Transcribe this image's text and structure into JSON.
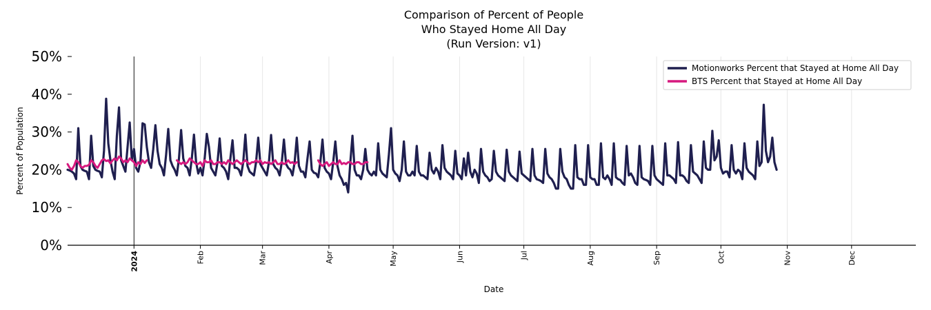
{
  "chart_data": {
    "type": "line",
    "title": [
      "Comparison of Percent of People",
      "Who Stayed Home All Day",
      "(Run Version: v1)"
    ],
    "xlabel": "Date",
    "ylabel": "Percent of Population",
    "ylim": [
      0,
      50
    ],
    "yticks": [
      0,
      10,
      20,
      30,
      40,
      50
    ],
    "ytick_labels": [
      "0%",
      "10%",
      "20%",
      "30%",
      "40%",
      "50%"
    ],
    "x_start": "2023-12-01",
    "x_end": "2024-12-31",
    "xticks": [
      {
        "date": "2024-01-01",
        "label": "2024",
        "bold": true
      },
      {
        "date": "2024-02-01",
        "label": "Feb",
        "bold": false
      },
      {
        "date": "2024-03-01",
        "label": "Mar",
        "bold": false
      },
      {
        "date": "2024-04-01",
        "label": "Apr",
        "bold": false
      },
      {
        "date": "2024-05-01",
        "label": "May",
        "bold": false
      },
      {
        "date": "2024-06-01",
        "label": "Jun",
        "bold": false
      },
      {
        "date": "2024-07-01",
        "label": "Jul",
        "bold": false
      },
      {
        "date": "2024-08-01",
        "label": "Aug",
        "bold": false
      },
      {
        "date": "2024-09-01",
        "label": "Sep",
        "bold": false
      },
      {
        "date": "2024-10-01",
        "label": "Oct",
        "bold": false
      },
      {
        "date": "2024-11-01",
        "label": "Nov",
        "bold": false
      },
      {
        "date": "2024-12-01",
        "label": "Dec",
        "bold": false
      }
    ],
    "vline_date": "2024-01-01",
    "legend_position": "top-right",
    "series": [
      {
        "name": "Motionworks Percent that Stayed at Home All Day",
        "color": "#1f1f4f",
        "start_date": "2023-12-01",
        "values": [
          20,
          19.8,
          19.5,
          19,
          17.5,
          31,
          21,
          20,
          19.7,
          19.5,
          17.5,
          29,
          21,
          20,
          19.7,
          19.5,
          18,
          25,
          38.8,
          27,
          22.5,
          19.5,
          17.5,
          29,
          36.5,
          22.5,
          21,
          19.5,
          26,
          32.5,
          22.5,
          25.5,
          20.5,
          19.5,
          22,
          32.3,
          32,
          26,
          22,
          20.5,
          25.5,
          31.8,
          25,
          21.5,
          20.5,
          18.5,
          24,
          30.8,
          22.5,
          21,
          20,
          18.5,
          23,
          30.5,
          23,
          21,
          20.5,
          18.5,
          23,
          29.3,
          22,
          19,
          20.5,
          18.5,
          23,
          29.5,
          26,
          20.5,
          19.5,
          18.5,
          22,
          28.3,
          21,
          20.5,
          19.5,
          17.5,
          23,
          27.8,
          20.5,
          20.5,
          20,
          18.5,
          22,
          29.3,
          21,
          19.5,
          19,
          18.5,
          22,
          28.5,
          21.5,
          20.5,
          19.5,
          18.5,
          22,
          29.2,
          21.5,
          20.5,
          20,
          18.5,
          22,
          28,
          21.5,
          20.5,
          20,
          18.5,
          22,
          28.5,
          21,
          19.5,
          19.5,
          18,
          23,
          27.5,
          20,
          19.2,
          19,
          18,
          22,
          28,
          20.5,
          19.5,
          19,
          17.5,
          22,
          27.5,
          21,
          18.5,
          17.5,
          16,
          16.5,
          14,
          22,
          29,
          20,
          18.5,
          18.5,
          17.5,
          20,
          25.5,
          20,
          19,
          18.5,
          19.5,
          18.5,
          27,
          20,
          19,
          18.5,
          18,
          24,
          31,
          20,
          19,
          18.5,
          17,
          20,
          27.5,
          19.5,
          18.5,
          18.5,
          19.5,
          18.5,
          26.3,
          19.5,
          18.5,
          18.5,
          18,
          17.5,
          24.5,
          20,
          19,
          20.5,
          19.5,
          17.5,
          26.5,
          20.5,
          19.5,
          19,
          18.5,
          17.5,
          25,
          19,
          18.5,
          17.5,
          23,
          18.5,
          24.5,
          19.5,
          18,
          20,
          19,
          16.5,
          25.5,
          19.5,
          18.5,
          18,
          17,
          17.5,
          25,
          19.5,
          18.5,
          18,
          17.5,
          17,
          25.3,
          19.5,
          18.5,
          18,
          17.5,
          17,
          24.8,
          19,
          18.5,
          18,
          17.5,
          17,
          25.5,
          18.5,
          17.5,
          17.3,
          17,
          16.5,
          25.5,
          19,
          18,
          17.5,
          16.5,
          15,
          15,
          25.5,
          19.5,
          18,
          17.5,
          16,
          15,
          15,
          26.5,
          18,
          17.5,
          17.5,
          16,
          16,
          26.5,
          18,
          17.5,
          17.5,
          16,
          16,
          27,
          18,
          17.5,
          18.5,
          17.5,
          16,
          27,
          18,
          17.5,
          17.3,
          16.5,
          16,
          26.3,
          18.5,
          19,
          18,
          16.5,
          16,
          26.3,
          18,
          17.5,
          17.3,
          17,
          16,
          26.3,
          18.5,
          17.5,
          17,
          16.5,
          16,
          27,
          18.5,
          18.5,
          18,
          17.5,
          16.5,
          27.3,
          18.5,
          18.5,
          18,
          17,
          16.5,
          26.5,
          19.5,
          19,
          18.5,
          17.5,
          16.5,
          27.5,
          20.5,
          20,
          20,
          30.3,
          22.5,
          23.5,
          27.8,
          20.5,
          19,
          19.5,
          19.5,
          18,
          26.5,
          20,
          19,
          20,
          19.5,
          17.5,
          27,
          20.5,
          19.5,
          19,
          18.5,
          17.5,
          27.5,
          21,
          22,
          37.2,
          25,
          22,
          23.5,
          28.5,
          22,
          20
        ]
      },
      {
        "name": "BTS Percent that Stayed at Home All Day",
        "color": "#d6197e",
        "start_date": "2023-12-01",
        "values": [
          21.5,
          20.5,
          20,
          21,
          22.5,
          22,
          21,
          20.5,
          21,
          21,
          21.3,
          22.5,
          22,
          21,
          20.5,
          21.5,
          22.5,
          22.8,
          22.3,
          22.5,
          21.7,
          22.5,
          23,
          22.5,
          23.5,
          23,
          22,
          22.5,
          22,
          23,
          22.5,
          22,
          21,
          22,
          21.5,
          22.5,
          21.8,
          22.5,
          null,
          null,
          null,
          null,
          null,
          null,
          null,
          null,
          null,
          null,
          null,
          null,
          null,
          22.5,
          22,
          21.5,
          22,
          21.5,
          22,
          23,
          22.5,
          22,
          21.5,
          21.5,
          22,
          21,
          22.5,
          22,
          22,
          22.5,
          21.5,
          21.5,
          22,
          22,
          21.5,
          22,
          21.5,
          22.5,
          22,
          21.5,
          22,
          22.5,
          22,
          21.5,
          22,
          22.5,
          22,
          21.5,
          22,
          22,
          22.5,
          22,
          22.5,
          21.5,
          22,
          21.8,
          22,
          21.5,
          22,
          22.5,
          21.5,
          21.5,
          22,
          21.5,
          21.8,
          22.5,
          21.8,
          22,
          21.5,
          22,
          null,
          null,
          null,
          null,
          null,
          null,
          null,
          null,
          null,
          22.5,
          21.5,
          21,
          21.5,
          22,
          21,
          21.5,
          22,
          21.5,
          21.5,
          22.5,
          21.5,
          21.8,
          21.5,
          22,
          22,
          21.5,
          21.5,
          22,
          22,
          21.5,
          21.5,
          22,
          22
        ]
      }
    ]
  }
}
